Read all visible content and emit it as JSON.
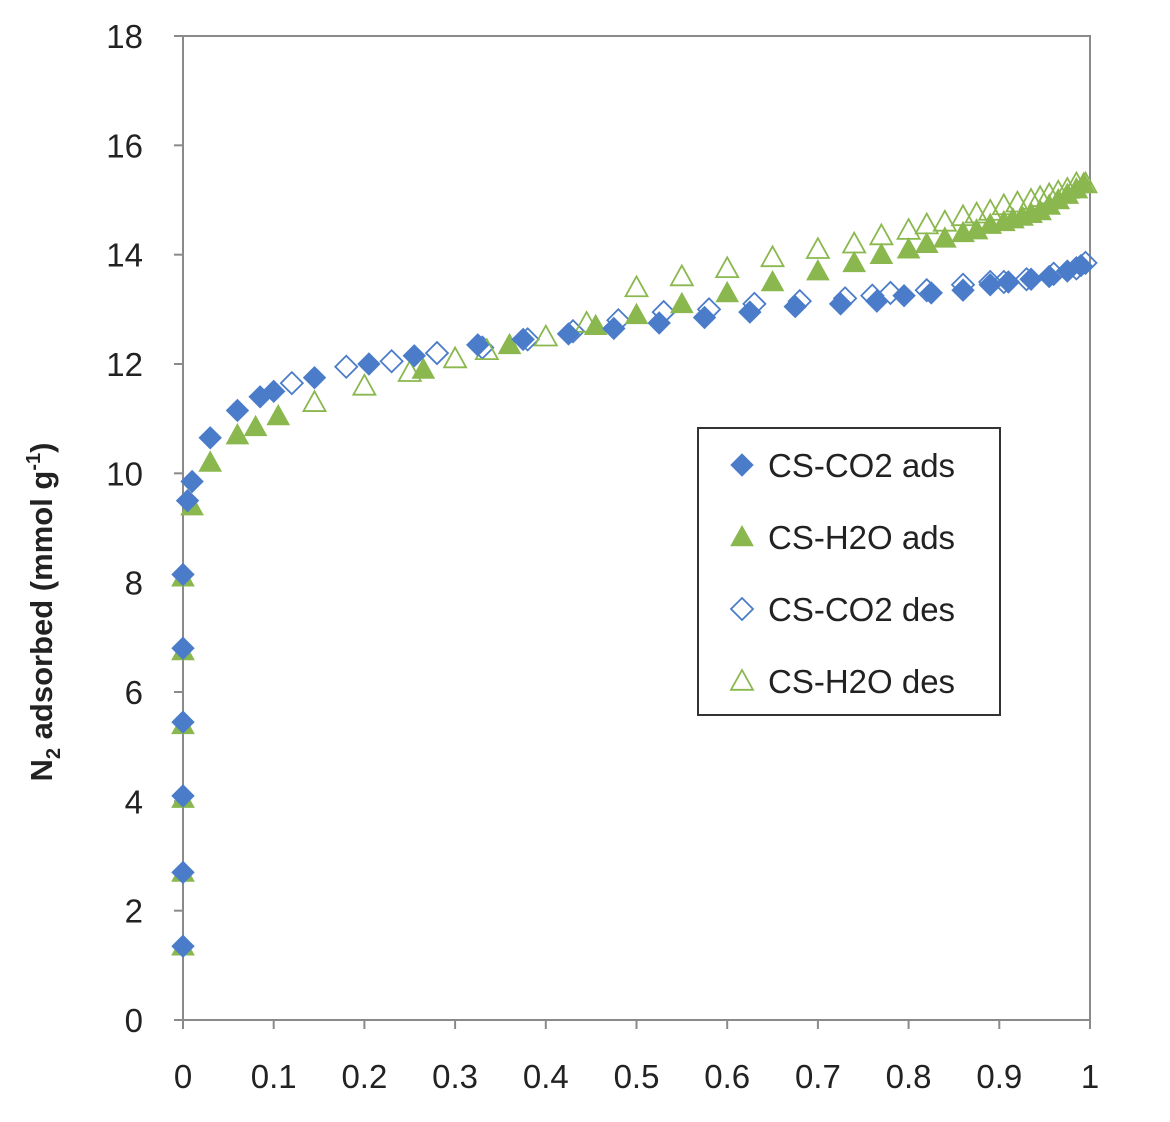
{
  "chart_data": {
    "type": "scatter",
    "title": "",
    "xlabel": "",
    "ylabel_main": "N",
    "ylabel_sub": "2",
    "ylabel_mid": " adsorbed (mmol g",
    "ylabel_sup": "-1",
    "ylabel_end": ")",
    "xlim": [
      0,
      1
    ],
    "ylim": [
      0,
      18
    ],
    "x_ticks": [
      "0",
      "0.1",
      "0.2",
      "0.3",
      "0.4",
      "0.5",
      "0.6",
      "0.7",
      "0.8",
      "0.9",
      "1"
    ],
    "y_ticks": [
      "0",
      "2",
      "4",
      "6",
      "8",
      "10",
      "12",
      "14",
      "16",
      "18"
    ],
    "grid": false,
    "legend_position": "right-middle",
    "series": [
      {
        "name": "CS-CO2 ads",
        "marker": "diamond-filled",
        "color": "#4a7cc9",
        "points": [
          [
            0.0,
            1.35
          ],
          [
            0.0,
            2.7
          ],
          [
            0.0,
            4.1
          ],
          [
            0.0,
            5.45
          ],
          [
            0.0,
            6.8
          ],
          [
            0.0,
            8.15
          ],
          [
            0.005,
            9.5
          ],
          [
            0.01,
            9.85
          ],
          [
            0.03,
            10.65
          ],
          [
            0.06,
            11.15
          ],
          [
            0.085,
            11.4
          ],
          [
            0.1,
            11.5
          ],
          [
            0.145,
            11.75
          ],
          [
            0.205,
            12.0
          ],
          [
            0.255,
            12.15
          ],
          [
            0.325,
            12.35
          ],
          [
            0.375,
            12.45
          ],
          [
            0.425,
            12.55
          ],
          [
            0.475,
            12.65
          ],
          [
            0.525,
            12.75
          ],
          [
            0.575,
            12.85
          ],
          [
            0.625,
            12.95
          ],
          [
            0.675,
            13.05
          ],
          [
            0.725,
            13.1
          ],
          [
            0.765,
            13.15
          ],
          [
            0.795,
            13.25
          ],
          [
            0.825,
            13.3
          ],
          [
            0.86,
            13.35
          ],
          [
            0.89,
            13.45
          ],
          [
            0.91,
            13.5
          ],
          [
            0.935,
            13.55
          ],
          [
            0.955,
            13.6
          ],
          [
            0.975,
            13.7
          ],
          [
            0.99,
            13.8
          ]
        ]
      },
      {
        "name": "CS-H2O ads",
        "marker": "triangle-filled",
        "color": "#8ab84e",
        "points": [
          [
            0.0,
            1.35
          ],
          [
            0.0,
            2.7
          ],
          [
            0.0,
            4.05
          ],
          [
            0.0,
            5.4
          ],
          [
            0.0,
            6.75
          ],
          [
            0.0,
            8.1
          ],
          [
            0.01,
            9.4
          ],
          [
            0.03,
            10.2
          ],
          [
            0.06,
            10.7
          ],
          [
            0.08,
            10.85
          ],
          [
            0.105,
            11.05
          ],
          [
            0.265,
            11.9
          ],
          [
            0.36,
            12.35
          ],
          [
            0.455,
            12.7
          ],
          [
            0.5,
            12.9
          ],
          [
            0.55,
            13.1
          ],
          [
            0.6,
            13.3
          ],
          [
            0.65,
            13.5
          ],
          [
            0.7,
            13.7
          ],
          [
            0.74,
            13.85
          ],
          [
            0.77,
            14.0
          ],
          [
            0.8,
            14.1
          ],
          [
            0.82,
            14.2
          ],
          [
            0.84,
            14.3
          ],
          [
            0.86,
            14.4
          ],
          [
            0.875,
            14.45
          ],
          [
            0.89,
            14.55
          ],
          [
            0.905,
            14.6
          ],
          [
            0.915,
            14.65
          ],
          [
            0.925,
            14.7
          ],
          [
            0.935,
            14.75
          ],
          [
            0.945,
            14.8
          ],
          [
            0.955,
            14.9
          ],
          [
            0.965,
            15.0
          ],
          [
            0.975,
            15.1
          ],
          [
            0.985,
            15.2
          ],
          [
            0.993,
            15.3
          ]
        ]
      },
      {
        "name": "CS-CO2 des",
        "marker": "diamond-open",
        "color": "#4a7cc9",
        "points": [
          [
            0.12,
            11.65
          ],
          [
            0.18,
            11.95
          ],
          [
            0.23,
            12.05
          ],
          [
            0.28,
            12.2
          ],
          [
            0.33,
            12.3
          ],
          [
            0.38,
            12.45
          ],
          [
            0.43,
            12.6
          ],
          [
            0.48,
            12.8
          ],
          [
            0.53,
            12.95
          ],
          [
            0.58,
            13.0
          ],
          [
            0.63,
            13.1
          ],
          [
            0.68,
            13.15
          ],
          [
            0.73,
            13.2
          ],
          [
            0.76,
            13.25
          ],
          [
            0.78,
            13.3
          ],
          [
            0.82,
            13.35
          ],
          [
            0.86,
            13.45
          ],
          [
            0.89,
            13.5
          ],
          [
            0.905,
            13.5
          ],
          [
            0.93,
            13.55
          ],
          [
            0.96,
            13.65
          ],
          [
            0.985,
            13.75
          ],
          [
            0.995,
            13.85
          ]
        ]
      },
      {
        "name": "CS-H2O des",
        "marker": "triangle-open",
        "color": "#8ab84e",
        "points": [
          [
            0.145,
            11.3
          ],
          [
            0.2,
            11.6
          ],
          [
            0.25,
            11.85
          ],
          [
            0.3,
            12.1
          ],
          [
            0.335,
            12.25
          ],
          [
            0.4,
            12.5
          ],
          [
            0.445,
            12.75
          ],
          [
            0.5,
            13.4
          ],
          [
            0.55,
            13.6
          ],
          [
            0.6,
            13.75
          ],
          [
            0.65,
            13.95
          ],
          [
            0.7,
            14.1
          ],
          [
            0.74,
            14.2
          ],
          [
            0.77,
            14.35
          ],
          [
            0.8,
            14.45
          ],
          [
            0.82,
            14.55
          ],
          [
            0.84,
            14.6
          ],
          [
            0.86,
            14.7
          ],
          [
            0.875,
            14.75
          ],
          [
            0.89,
            14.8
          ],
          [
            0.905,
            14.9
          ],
          [
            0.92,
            14.95
          ],
          [
            0.935,
            15.0
          ],
          [
            0.945,
            15.05
          ],
          [
            0.955,
            15.1
          ],
          [
            0.965,
            15.15
          ],
          [
            0.975,
            15.2
          ],
          [
            0.985,
            15.3
          ],
          [
            0.995,
            15.3
          ]
        ]
      }
    ]
  }
}
